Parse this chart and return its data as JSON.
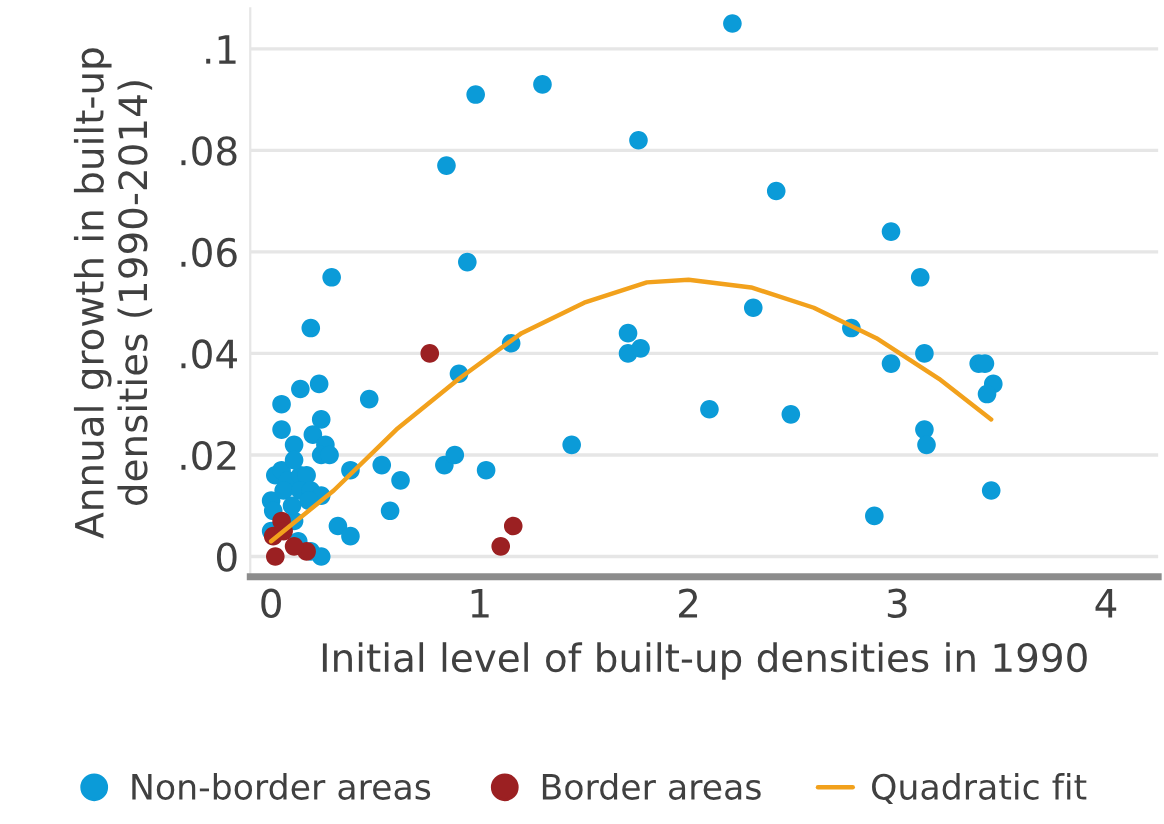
{
  "chart_data": {
    "type": "scatter",
    "xlabel": "Initial level of built-up densities in 1990",
    "ylabel": "Annual growth in built-up densities (1990-2014)",
    "xlim": [
      -0.1,
      4.25
    ],
    "xticks": [
      0,
      1,
      2,
      3,
      4
    ],
    "ylim": [
      -0.004,
      0.108
    ],
    "yticks": [
      0,
      {
        "value": 0.02,
        "label": ".02"
      },
      {
        "value": 0.04,
        "label": ".04"
      },
      {
        "value": 0.06,
        "label": ".06"
      },
      {
        "value": 0.08,
        "label": ".08"
      },
      {
        "value": 0.1,
        "label": ".1"
      }
    ],
    "grid": "y",
    "legend": "bottom",
    "marker": "circle",
    "series": [
      {
        "name": "Non-border areas",
        "color": "#0b9bd8",
        "x": [
          1.3,
          0.98,
          0.84,
          0.94,
          0.29,
          0.19,
          1.15,
          0.9,
          0.05,
          0.14,
          0.23,
          0.47,
          0.05,
          0.24,
          0.2,
          0.11,
          0.26,
          0.24,
          0.28,
          1.44,
          0.38,
          0.53,
          0.62,
          0.83,
          0.88,
          1.03,
          0.57,
          0.32,
          0.38,
          0.24,
          0.02,
          0.0,
          0.05,
          0.08,
          0.14,
          0.17,
          0.11,
          0.06,
          0.14,
          0.19,
          0.24,
          0.18,
          0.0,
          0.11,
          0.13,
          0.19,
          0.01,
          0.1,
          2.21,
          1.76,
          2.42,
          2.97,
          3.11,
          2.31,
          1.71,
          1.71,
          1.77,
          2.78,
          2.97,
          3.13,
          3.39,
          3.42,
          3.46,
          3.43,
          2.1,
          2.49,
          3.13,
          3.14,
          3.45,
          2.89
        ],
        "values": [
          0.093,
          0.091,
          0.077,
          0.058,
          0.055,
          0.045,
          0.042,
          0.036,
          0.03,
          0.033,
          0.034,
          0.031,
          0.025,
          0.027,
          0.024,
          0.022,
          0.022,
          0.02,
          0.02,
          0.022,
          0.017,
          0.018,
          0.015,
          0.018,
          0.02,
          0.017,
          0.009,
          0.006,
          0.004,
          0.0,
          0.016,
          0.011,
          0.017,
          0.015,
          0.016,
          0.016,
          0.019,
          0.013,
          0.013,
          0.013,
          0.012,
          0.011,
          0.005,
          0.007,
          0.003,
          0.001,
          0.009,
          0.01,
          0.105,
          0.082,
          0.072,
          0.064,
          0.055,
          0.049,
          0.044,
          0.04,
          0.041,
          0.045,
          0.038,
          0.04,
          0.038,
          0.038,
          0.034,
          0.032,
          0.029,
          0.028,
          0.025,
          0.022,
          0.013,
          0.008
        ]
      },
      {
        "name": "Border areas",
        "color": "#9b2022",
        "x": [
          0.76,
          1.16,
          1.1,
          0.05,
          0.17,
          0.01,
          0.06,
          0.11,
          0.02
        ],
        "values": [
          0.04,
          0.006,
          0.002,
          0.007,
          0.001,
          0.004,
          0.005,
          0.002,
          0.0
        ]
      },
      {
        "name": "Quadratic fit",
        "type": "line",
        "color": "#f2a11c",
        "marker": "none",
        "x": [
          0,
          0.3,
          0.6,
          0.9,
          1.2,
          1.5,
          1.8,
          2.0,
          2.3,
          2.6,
          2.9,
          3.2,
          3.45
        ],
        "values": [
          0.003,
          0.013,
          0.025,
          0.035,
          0.044,
          0.05,
          0.054,
          0.0545,
          0.053,
          0.049,
          0.043,
          0.035,
          0.027
        ]
      }
    ]
  }
}
